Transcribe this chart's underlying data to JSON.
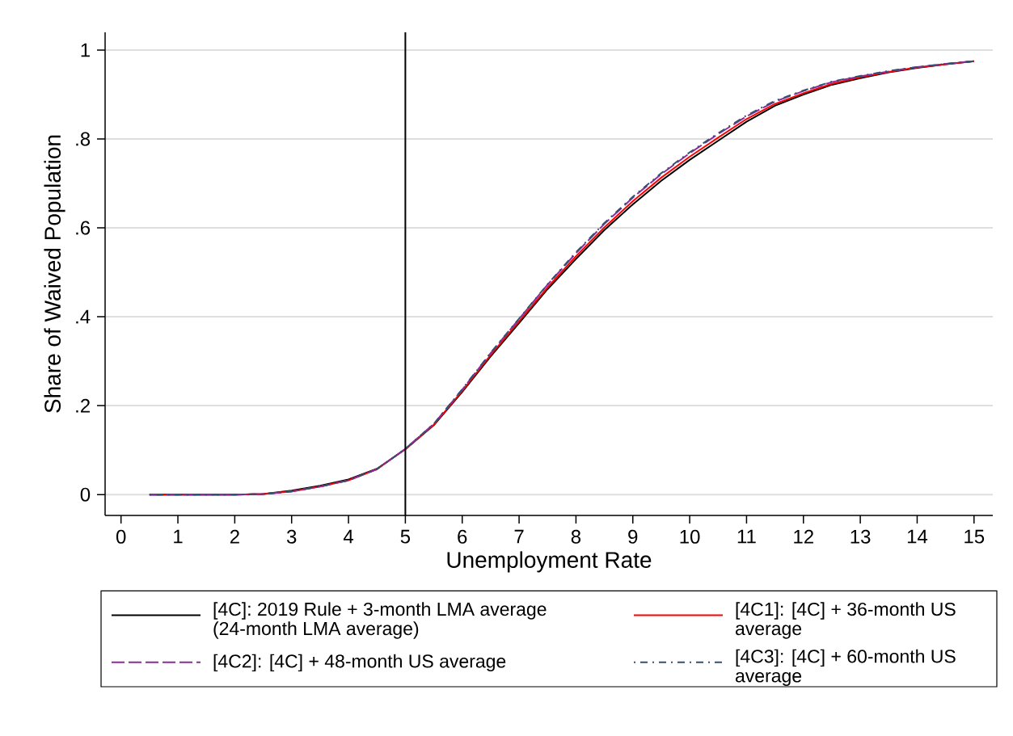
{
  "chart_data": {
    "type": "line",
    "xlabel": "Unemployment Rate",
    "ylabel": "Share of Waived Population",
    "x": [
      0.5,
      1,
      1.5,
      2,
      2.5,
      3,
      3.5,
      4,
      4.5,
      5,
      5.5,
      6,
      6.5,
      7,
      7.5,
      8,
      8.5,
      9,
      9.5,
      10,
      10.5,
      11,
      11.5,
      12,
      12.5,
      13,
      13.5,
      14,
      14.5,
      15
    ],
    "series": [
      {
        "name": "[4C]: 2019 Rule + 3-month LMA average (24-month LMA average)",
        "color": "#000000",
        "line_style": "solid",
        "values": [
          0,
          0,
          0,
          0,
          0.001,
          0.009,
          0.02,
          0.034,
          0.058,
          0.102,
          0.156,
          0.231,
          0.311,
          0.386,
          0.462,
          0.53,
          0.595,
          0.653,
          0.706,
          0.753,
          0.796,
          0.839,
          0.875,
          0.9,
          0.922,
          0.937,
          0.95,
          0.96,
          0.968,
          0.975
        ]
      },
      {
        "name": "[4C1]: [4C] + 36-month US average",
        "color": "#ff0000",
        "line_style": "solid",
        "values": [
          0,
          0,
          0,
          0,
          0.001,
          0.007,
          0.018,
          0.032,
          0.057,
          0.102,
          0.157,
          0.233,
          0.314,
          0.39,
          0.466,
          0.536,
          0.601,
          0.66,
          0.713,
          0.76,
          0.803,
          0.845,
          0.879,
          0.903,
          0.924,
          0.939,
          0.951,
          0.961,
          0.968,
          0.975
        ]
      },
      {
        "name": "[4C2]: [4C] + 48-month US average",
        "color": "#8b2c9c",
        "line_style": "dashed",
        "values": [
          0,
          0,
          0,
          0,
          0.001,
          0.007,
          0.018,
          0.032,
          0.057,
          0.103,
          0.159,
          0.236,
          0.318,
          0.395,
          0.472,
          0.543,
          0.609,
          0.668,
          0.721,
          0.768,
          0.811,
          0.851,
          0.884,
          0.908,
          0.928,
          0.941,
          0.952,
          0.962,
          0.969,
          0.975
        ]
      },
      {
        "name": "[4C3]: [4C] + 60-month US average",
        "color": "#355070",
        "line_style": "dashdot",
        "values": [
          0,
          0,
          0,
          0,
          0.001,
          0.007,
          0.018,
          0.032,
          0.057,
          0.103,
          0.159,
          0.237,
          0.319,
          0.396,
          0.473,
          0.545,
          0.611,
          0.67,
          0.723,
          0.77,
          0.813,
          0.853,
          0.886,
          0.909,
          0.929,
          0.942,
          0.953,
          0.962,
          0.969,
          0.975
        ]
      }
    ],
    "xlim": [
      -0.28,
      15.33
    ],
    "ylim": [
      -0.047,
      1.04
    ],
    "xticks": [
      0,
      1,
      2,
      3,
      4,
      5,
      6,
      7,
      8,
      9,
      10,
      11,
      12,
      13,
      14,
      15
    ],
    "yticks": [
      0,
      {
        "value": 0.2,
        "label": ".2"
      },
      {
        "value": 0.4,
        "label": ".4"
      },
      {
        "value": 0.6,
        "label": ".6"
      },
      {
        "value": 0.8,
        "label": ".8"
      },
      1
    ],
    "ref_lines": [
      {
        "axis": "x",
        "value": 5,
        "color": "#000000"
      }
    ],
    "grid": "y",
    "legend": "bottom"
  }
}
